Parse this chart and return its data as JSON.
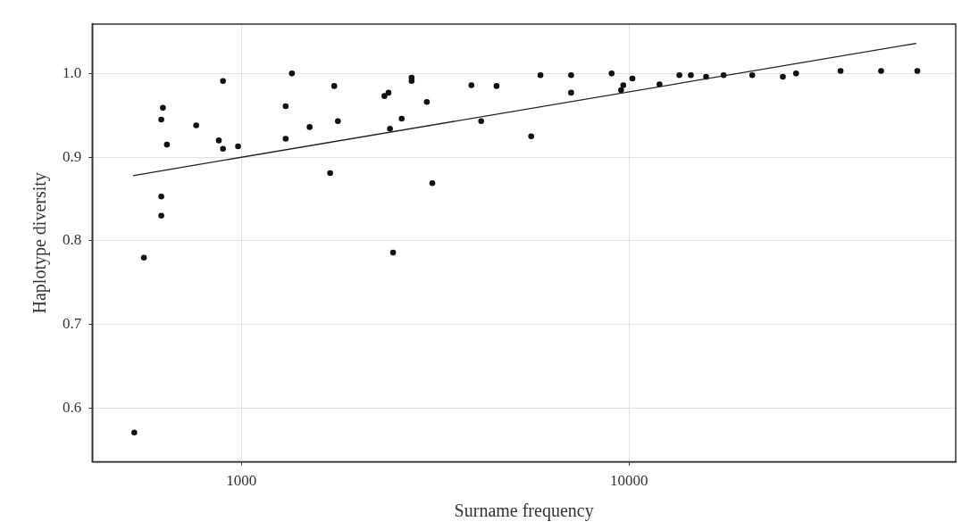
{
  "chart_data": {
    "type": "scatter",
    "xlabel": "Surname frequency",
    "ylabel": "Haplotype diversity",
    "log": "x",
    "grid": true,
    "legend": false,
    "marker": "circle",
    "xlim": [
      412,
      69600
    ],
    "xticks": [
      1000,
      10000
    ],
    "ylim": [
      0.536,
      1.059
    ],
    "yticks": [
      0.6,
      0.7,
      0.8,
      0.9,
      {
        "value": 1,
        "label": "1.0"
      }
    ],
    "series": [
      {
        "type": "scatter",
        "color": "#111111",
        "x": [
          560,
          529,
          621,
          627,
          642,
          621,
          621,
          764,
          896,
          874,
          896,
          980,
          1300,
          1300,
          1349,
          1499,
          1693,
          1735,
          1773,
          2338,
          2395,
          2416,
          2461,
          2590,
          2747,
          2747,
          3007,
          3107,
          3919,
          4153,
          4550,
          5590,
          5906,
          7087,
          7087,
          9014,
          9535,
          9660,
          10200,
          11980,
          13480,
          14430,
          15800,
          17530,
          20780,
          24930,
          26960,
          35120,
          44680,
          55410
        ],
        "values": [
          0.78,
          0.571,
          0.945,
          0.959,
          0.915,
          0.853,
          0.83,
          0.938,
          0.991,
          0.92,
          0.91,
          0.913,
          0.961,
          0.922,
          1.0,
          0.936,
          0.881,
          0.985,
          0.943,
          0.973,
          0.977,
          0.934,
          0.786,
          0.946,
          0.995,
          0.991,
          0.966,
          0.869,
          0.986,
          0.943,
          0.985,
          0.925,
          0.998,
          0.998,
          0.977,
          1.0,
          0.98,
          0.986,
          0.994,
          0.987,
          0.998,
          0.998,
          0.996,
          0.998,
          0.998,
          0.996,
          1.0,
          1.003,
          1.003,
          1.003
        ]
      },
      {
        "type": "line",
        "color": "#222222",
        "marker": "none",
        "line_style": "solid",
        "x": [
          525,
          55100
        ],
        "values": [
          0.878,
          1.036
        ]
      }
    ]
  }
}
